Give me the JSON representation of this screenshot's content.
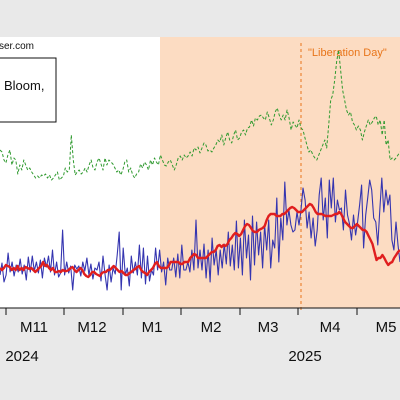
{
  "chart_data": {
    "type": "line",
    "source_text": "ser.com",
    "legend_fragment": "Bloom,",
    "annotation": "\"Liberation Day\"",
    "x_ticks": [
      "M11",
      "M12",
      "M1",
      "M2",
      "M3",
      "M4",
      "M5"
    ],
    "years": [
      "2024",
      "2025"
    ],
    "colors": {
      "blue": "#3535b0",
      "red": "#e01e1e",
      "green": "#2f9a2f",
      "shade": "#fcdcc2",
      "annotation": "#e8751a",
      "background": "#e9e9e9"
    },
    "series": [
      {
        "color": "blue",
        "values": [
          275,
          263,
          282,
          275,
          253,
          272,
          262,
          276,
          265,
          272,
          259,
          274,
          265,
          280,
          257,
          272,
          256,
          271,
          262,
          273,
          260,
          278,
          258,
          267,
          256,
          272,
          250,
          275,
          262,
          277,
          273,
          230,
          275,
          262,
          273,
          266,
          290,
          265,
          269,
          266,
          276,
          262,
          271,
          258,
          275,
          264,
          279,
          268,
          270,
          262,
          281,
          256,
          275,
          290,
          265,
          282,
          268,
          274,
          255,
          232,
          290,
          248,
          275,
          268,
          286,
          256,
          273,
          262,
          275,
          245,
          278,
          248,
          284,
          256,
          281,
          270,
          275,
          248,
          270,
          250,
          272,
          262,
          285,
          258,
          270,
          270,
          258,
          277,
          254,
          278,
          245,
          270,
          270,
          262,
          272,
          250,
          270,
          220,
          268,
          250,
          270,
          244,
          278,
          250,
          282,
          238,
          265,
          250,
          275,
          250,
          268,
          244,
          264,
          232,
          266,
          245,
          270,
          221,
          268,
          238,
          275,
          220,
          258,
          235,
          280,
          216,
          265,
          222,
          255,
          232,
          268,
          225,
          250,
          220,
          268,
          240,
          248,
          198,
          262,
          218,
          240,
          182,
          225,
          210,
          225,
          232,
          230,
          212,
          225,
          210,
          188,
          200,
          228,
          212,
          238,
          218,
          246,
          230,
          195,
          178,
          220,
          198,
          238,
          180,
          208,
          178,
          222,
          200,
          210,
          208,
          230,
          190,
          215,
          224,
          240,
          215,
          235,
          222,
          205,
          185,
          248,
          215,
          198,
          180,
          190,
          218,
          222,
          245,
          210,
          178,
          212,
          190,
          205,
          195,
          240,
          250,
          222,
          245,
          262
        ],
        "y_range": [
          160,
          300
        ]
      },
      {
        "color": "red",
        "values": [
          268,
          270,
          268,
          265,
          266,
          267,
          270,
          268,
          270,
          266,
          270,
          268,
          270,
          267,
          268,
          269,
          268,
          270,
          272,
          270,
          268,
          266,
          262,
          266,
          265,
          268,
          270,
          268,
          272,
          272,
          271,
          272,
          270,
          271,
          271,
          270,
          268,
          267,
          270,
          272,
          270,
          268,
          270,
          274,
          276,
          277,
          275,
          272,
          272,
          274,
          275,
          276,
          273,
          272,
          272,
          270,
          270,
          268,
          266,
          268,
          270,
          272,
          271,
          273,
          275,
          275,
          273,
          272,
          270,
          269,
          267,
          266,
          270,
          272,
          273,
          275,
          272,
          270,
          268,
          264,
          262,
          266,
          268,
          268,
          268,
          268,
          266,
          262,
          262,
          262,
          262,
          262,
          264,
          264,
          262,
          262,
          262,
          258,
          256,
          254,
          255,
          258,
          258,
          258,
          258,
          258,
          256,
          254,
          252,
          252,
          250,
          246,
          245,
          247,
          245,
          246,
          244,
          240,
          238,
          235,
          233,
          234,
          236,
          234,
          230,
          226,
          224,
          225,
          228,
          231,
          232,
          232,
          230,
          229,
          228,
          226,
          220,
          216,
          214,
          214,
          214,
          216,
          216,
          216,
          214,
          214,
          212,
          210,
          208,
          207,
          208,
          210,
          212,
          212,
          212,
          210,
          208,
          206,
          204,
          205,
          208,
          212,
          214,
          214,
          214,
          215,
          216,
          216,
          216,
          216,
          215,
          214,
          214,
          212,
          214,
          218,
          222,
          224,
          226,
          228,
          228,
          226,
          224,
          226,
          228,
          230,
          230,
          232,
          236,
          240,
          244,
          252,
          260,
          258,
          258,
          255,
          258,
          262,
          265,
          263,
          262,
          258,
          255,
          252,
          250
        ]
      },
      {
        "color": "green",
        "values": [
          150,
          152,
          160,
          163,
          155,
          150,
          165,
          158,
          160,
          174,
          165,
          170,
          160,
          165,
          170,
          168,
          172,
          175,
          178,
          176,
          178,
          175,
          176,
          174,
          178,
          175,
          180,
          178,
          175,
          172,
          180,
          178,
          176,
          168,
          172,
          170,
          135,
          160,
          175,
          172,
          170,
          174,
          172,
          168,
          172,
          165,
          160,
          168,
          170,
          162,
          158,
          164,
          170,
          158,
          165,
          160,
          162,
          164,
          168,
          172,
          170,
          175,
          170,
          162,
          160,
          172,
          168,
          175,
          178,
          174,
          172,
          164,
          168,
          162,
          165,
          170,
          160,
          165,
          158,
          162,
          165,
          155,
          160,
          165,
          166,
          162,
          160,
          165,
          170,
          165,
          158,
          156,
          160,
          155,
          158,
          156,
          152,
          156,
          148,
          150,
          147,
          153,
          148,
          143,
          145,
          151,
          150,
          152,
          148,
          145,
          140,
          142,
          135,
          145,
          138,
          132,
          140,
          143,
          135,
          130,
          140,
          138,
          132,
          130,
          135,
          128,
          127,
          120,
          126,
          118,
          120,
          116,
          115,
          118,
          120,
          112,
          118,
          125,
          120,
          112,
          108,
          115,
          120,
          115,
          120,
          110,
          118,
          130,
          122,
          125,
          128,
          120,
          128,
          130,
          138,
          145,
          152,
          150,
          155,
          158,
          160,
          155,
          150,
          145,
          140,
          148,
          125,
          100,
          95,
          80,
          62,
          50,
          70,
          90,
          100,
          110,
          115,
          112,
          122,
          125,
          130,
          126,
          130,
          140,
          132,
          126,
          120,
          125,
          122,
          118,
          116,
          125,
          120,
          135,
          120,
          145,
          140,
          160,
          158,
          160,
          158,
          155,
          152
        ]
      }
    ]
  }
}
